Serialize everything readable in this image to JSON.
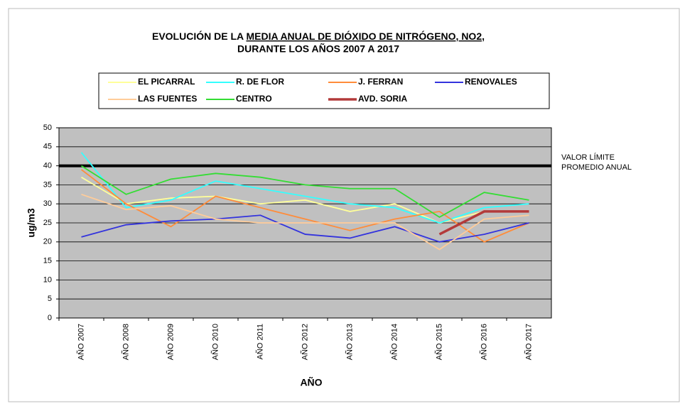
{
  "chart_data": {
    "type": "line",
    "title": [
      "EVOLUCIÓN  DE LA ",
      "MEDIA ANUAL DE DIÓXIDO DE NITRÓGENO, NO2,",
      "DURANTE  LOS AÑOS 2007 A 2017"
    ],
    "x_label": "AÑO",
    "y_label": "ug/m3",
    "categories": [
      "AÑO 2007",
      "AÑO 2008",
      "AÑO 2009",
      "AÑO 2010",
      "AÑO 2011",
      "AÑO 2012",
      "AÑO 2013",
      "AÑO 2014",
      "AÑO 2015",
      "AÑO 2016",
      "AÑO 2017"
    ],
    "series": [
      {
        "name": "EL PICARRAL",
        "color": "#ffff99",
        "values": [
          37,
          30,
          31.5,
          32,
          30,
          31,
          28,
          30,
          25,
          28,
          28
        ]
      },
      {
        "name": "R. DE FLOR",
        "color": "#33ffff",
        "values": [
          43.5,
          29,
          31,
          36,
          34,
          32,
          30,
          29,
          25,
          29,
          30
        ]
      },
      {
        "name": "J. FERRAN",
        "color": "#ff8c3a",
        "values": [
          39,
          30,
          24,
          32,
          29,
          26,
          23,
          26,
          28,
          20,
          25
        ]
      },
      {
        "name": "RENOVALES",
        "color": "#3333dd",
        "values": [
          21.3,
          24.5,
          25.5,
          26,
          27,
          22,
          21,
          24,
          20,
          22,
          25
        ]
      },
      {
        "name": "LAS FUENTES",
        "color": "#ffcc99",
        "values": [
          32.5,
          28.5,
          29.5,
          26,
          25,
          25,
          25,
          25,
          18,
          26,
          27
        ]
      },
      {
        "name": "CENTRO",
        "color": "#33dd33",
        "values": [
          40,
          32.5,
          36.5,
          38,
          37,
          35,
          34,
          34,
          26.5,
          33,
          31
        ]
      },
      {
        "name": "AVD. SORIA",
        "color": "#b33a3a",
        "values": [
          null,
          null,
          null,
          null,
          null,
          null,
          null,
          null,
          22,
          28,
          28
        ]
      }
    ],
    "limit": {
      "value": 40,
      "label": [
        "VALOR LÍMITE",
        "PROMEDIO ANUAL"
      ]
    },
    "ylim": [
      0,
      50
    ],
    "yticks": [
      0,
      5,
      10,
      15,
      20,
      25,
      30,
      35,
      40,
      45,
      50
    ],
    "grid": true
  }
}
